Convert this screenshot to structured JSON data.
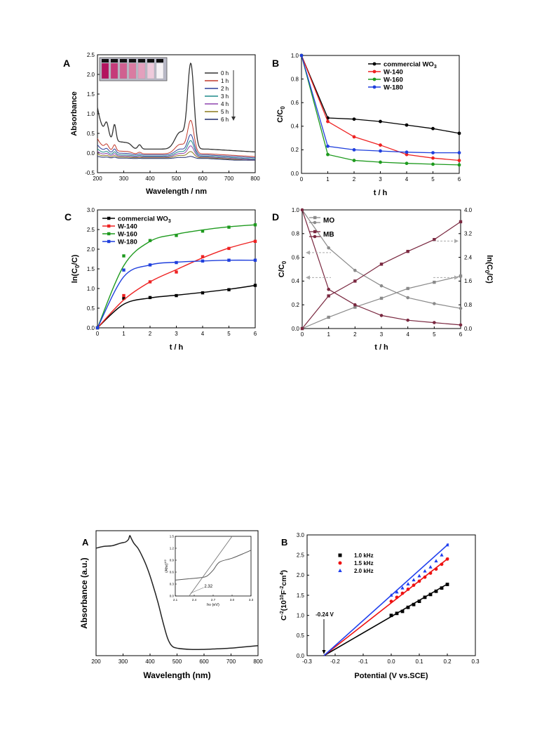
{
  "chart_data": [
    {
      "id": "A1",
      "type": "line",
      "panel_letter": "A",
      "xlabel": "Wavelength / nm",
      "ylabel": "Absorbance",
      "xlim": [
        200,
        800
      ],
      "ylim": [
        -0.5,
        2.5
      ],
      "xticks": [
        "200",
        "300",
        "400",
        "500",
        "600",
        "700",
        "800"
      ],
      "yticks": [
        "-0.5",
        "0.0",
        "0.5",
        "1.0",
        "1.5",
        "2.0",
        "2.5"
      ],
      "legend_position": "top-right",
      "legend_arrow": true,
      "inset_photo": "photo of seven sample vials changing from magenta to colorless",
      "series": [
        {
          "name": "0 h",
          "color": "#333333",
          "peak": 2.13,
          "shoulder": 0.43,
          "uv": 0.9,
          "base": 0.1
        },
        {
          "name": "1 h",
          "color": "#c0392b",
          "peak": 0.82,
          "shoulder": 0.24,
          "uv": 0.33,
          "base": -0.02
        },
        {
          "name": "2 h",
          "color": "#2c3e9a",
          "peak": 0.5,
          "shoulder": 0.15,
          "uv": 0.22,
          "base": -0.05
        },
        {
          "name": "3 h",
          "color": "#1f8a8a",
          "peak": 0.38,
          "shoulder": 0.12,
          "uv": 0.16,
          "base": -0.08
        },
        {
          "name": "4 h",
          "color": "#8e44ad",
          "peak": 0.27,
          "shoulder": 0.09,
          "uv": 0.12,
          "base": -0.1
        },
        {
          "name": "5 h",
          "color": "#8c7a1c",
          "peak": 0.15,
          "shoulder": 0.06,
          "uv": 0.08,
          "base": -0.12
        },
        {
          "name": "6 h",
          "color": "#1f2a6b",
          "peak": 0.05,
          "shoulder": 0.03,
          "uv": 0.05,
          "base": -0.14
        }
      ]
    },
    {
      "id": "B1",
      "type": "line",
      "panel_letter": "B",
      "xlabel": "t / h",
      "ylabel": "C/C",
      "ylabel_sub": "0",
      "xlim": [
        0,
        6
      ],
      "ylim": [
        0,
        1.0
      ],
      "xticks": [
        "0",
        "1",
        "2",
        "3",
        "4",
        "5",
        "6"
      ],
      "yticks": [
        "0.0",
        "0.2",
        "0.4",
        "0.6",
        "0.8",
        "1.0"
      ],
      "legend_position": "top-right",
      "series": [
        {
          "name": "commercial WO",
          "name_sub": "3",
          "color": "#000000",
          "x": [
            0,
            1,
            2,
            3,
            4,
            5,
            6
          ],
          "y": [
            1.0,
            0.47,
            0.46,
            0.44,
            0.41,
            0.38,
            0.34
          ]
        },
        {
          "name": "W-140",
          "color": "#ee2222",
          "x": [
            0,
            1,
            2,
            3,
            4,
            5,
            6
          ],
          "y": [
            1.0,
            0.44,
            0.31,
            0.24,
            0.16,
            0.13,
            0.11
          ]
        },
        {
          "name": "W-160",
          "color": "#1e9a1e",
          "x": [
            0,
            1,
            2,
            3,
            4,
            5,
            6
          ],
          "y": [
            1.0,
            0.16,
            0.11,
            0.095,
            0.085,
            0.078,
            0.072
          ]
        },
        {
          "name": "W-180",
          "color": "#1f3fdd",
          "x": [
            0,
            1,
            2,
            3,
            4,
            5,
            6
          ],
          "y": [
            1.0,
            0.23,
            0.2,
            0.19,
            0.18,
            0.175,
            0.175
          ]
        }
      ]
    },
    {
      "id": "C1",
      "type": "scatter",
      "panel_letter": "C",
      "xlabel": "t / h",
      "ylabel": "ln(C",
      "ylabel_sub": "0",
      "ylabel_tail": "/C)",
      "xlim": [
        0,
        6
      ],
      "ylim": [
        0,
        3.0
      ],
      "xticks": [
        "0",
        "1",
        "2",
        "3",
        "4",
        "5",
        "6"
      ],
      "yticks": [
        "0.0",
        "0.5",
        "1.0",
        "1.5",
        "2.0",
        "2.5",
        "3.0"
      ],
      "legend_position": "top-left",
      "series": [
        {
          "name": "commercial WO",
          "name_sub": "3",
          "color": "#000000",
          "x": [
            0,
            1,
            2,
            3,
            4,
            5,
            6
          ],
          "y": [
            0.0,
            0.75,
            0.77,
            0.82,
            0.89,
            0.97,
            1.08
          ],
          "curve_y": [
            0,
            0.6,
            0.76,
            0.83,
            0.9,
            0.98,
            1.08
          ]
        },
        {
          "name": "W-140",
          "color": "#ee2222",
          "x": [
            0,
            1,
            2,
            3,
            4,
            5,
            6
          ],
          "y": [
            0.0,
            0.82,
            1.17,
            1.42,
            1.81,
            2.02,
            2.2
          ],
          "curve_y": [
            0,
            0.71,
            1.17,
            1.48,
            1.78,
            2.03,
            2.21
          ]
        },
        {
          "name": "W-160",
          "color": "#1e9a1e",
          "x": [
            0,
            1,
            2,
            3,
            4,
            5,
            6
          ],
          "y": [
            0.0,
            1.83,
            2.22,
            2.35,
            2.46,
            2.56,
            2.62
          ],
          "curve_y": [
            0,
            1.58,
            2.2,
            2.38,
            2.49,
            2.57,
            2.62
          ]
        },
        {
          "name": "W-180",
          "color": "#1f3fdd",
          "x": [
            0,
            1,
            2,
            3,
            4,
            5,
            6
          ],
          "y": [
            0.0,
            1.47,
            1.6,
            1.66,
            1.7,
            1.72,
            1.72
          ],
          "curve_y": [
            0,
            1.3,
            1.6,
            1.67,
            1.7,
            1.72,
            1.72
          ]
        }
      ]
    },
    {
      "id": "D1",
      "type": "line",
      "panel_letter": "D",
      "xlabel": "t / h",
      "ylabel": "C/C",
      "ylabel_sub": "0",
      "y2label": "ln(C",
      "y2label_sub": "0",
      "y2label_tail": "/C)",
      "xlim": [
        0,
        6
      ],
      "ylim": [
        0,
        1.0
      ],
      "y2lim": [
        0,
        4.0
      ],
      "xticks": [
        "0",
        "1",
        "2",
        "3",
        "4",
        "5",
        "6"
      ],
      "yticks": [
        "0.0",
        "0.2",
        "0.4",
        "0.6",
        "0.8",
        "1.0"
      ],
      "y2ticks": [
        "0.0",
        "0.8",
        "1.6",
        "2.4",
        "3.2",
        "4.0"
      ],
      "legend_position": "top-left",
      "series": [
        {
          "name": "MO",
          "color": "#8a8a8a",
          "x": [
            0,
            1,
            2,
            3,
            4,
            5,
            6
          ],
          "y": [
            1.0,
            0.68,
            0.49,
            0.36,
            0.26,
            0.21,
            0.17
          ],
          "y2": [
            0,
            0.38,
            0.72,
            1.02,
            1.35,
            1.56,
            1.77
          ]
        },
        {
          "name": "MB",
          "color": "#7a2840",
          "x": [
            0,
            1,
            2,
            3,
            4,
            5,
            6
          ],
          "y": [
            1.0,
            0.33,
            0.2,
            0.11,
            0.07,
            0.05,
            0.03
          ],
          "y2": [
            0,
            1.1,
            1.6,
            2.17,
            2.6,
            3.0,
            3.6
          ]
        }
      ]
    },
    {
      "id": "A2",
      "type": "line",
      "panel_letter": "A",
      "xlabel": "Wavelength (nm)",
      "ylabel": "Absorbance (a.u.)",
      "xlim": [
        200,
        800
      ],
      "xticks": [
        "200",
        "300",
        "400",
        "500",
        "600",
        "700",
        "800"
      ],
      "series": [
        {
          "name": "",
          "color": "#222222",
          "x": [
            200,
            230,
            260,
            290,
            310,
            320,
            325,
            330,
            340,
            355,
            370,
            390,
            410,
            430,
            450,
            465,
            480,
            500,
            550,
            600,
            650,
            700,
            750,
            800
          ],
          "y": [
            0.86,
            0.875,
            0.88,
            0.9,
            0.91,
            0.93,
            0.96,
            0.94,
            0.9,
            0.86,
            0.8,
            0.7,
            0.57,
            0.42,
            0.25,
            0.14,
            0.08,
            0.06,
            0.05,
            0.05,
            0.055,
            0.06,
            0.07,
            0.08
          ]
        }
      ],
      "inset": {
        "xlabel": "hν (eV)",
        "ylabel": "(Ahν)",
        "ylabel_sup": "1/2",
        "xlim": [
          2.1,
          3.3
        ],
        "ylim": [
          0.0,
          1.5
        ],
        "xticks": [
          "2.1",
          "2.4",
          "2.7",
          "3.0",
          "3.3"
        ],
        "yticks": [
          "0.0",
          "0.3",
          "0.6",
          "0.9",
          "1.2",
          "1.5"
        ],
        "annotation": "2.32",
        "band_gap": 2.32,
        "curve": {
          "x": [
            2.1,
            2.3,
            2.5,
            2.6,
            2.7,
            2.8,
            3.0,
            3.2,
            3.3
          ],
          "y": [
            0.4,
            0.43,
            0.46,
            0.5,
            0.65,
            0.85,
            0.95,
            1.08,
            1.15
          ]
        },
        "tangent": {
          "x": [
            2.32,
            3.0
          ],
          "y": [
            0.0,
            1.5
          ]
        }
      }
    },
    {
      "id": "B2",
      "type": "scatter",
      "panel_letter": "B",
      "xlabel": "Potential (V vs.SCE)",
      "ylabel": "C",
      "ylabel_sup": "-2",
      "ylabel_mid": "(10",
      "ylabel_sup2": "10",
      "ylabel_tail": "F",
      "ylabel_sup3": "-2",
      "ylabel_tail2": "cm",
      "ylabel_sup4": "4",
      "ylabel_end": ")",
      "xlim": [
        -0.3,
        0.3
      ],
      "ylim": [
        0.0,
        3.0
      ],
      "xticks": [
        "-0.3",
        "-0.2",
        "-0.1",
        "0.0",
        "0.1",
        "0.2",
        "0.3"
      ],
      "yticks": [
        "0.0",
        "0.5",
        "1.0",
        "1.5",
        "2.0",
        "2.5",
        "3.0"
      ],
      "legend_position": "top-left",
      "annotation": "-0.24 V",
      "flatband": -0.24,
      "series": [
        {
          "name": "1.0 kHz",
          "color": "#000000",
          "marker": "square",
          "x": [
            0.0,
            0.02,
            0.04,
            0.06,
            0.08,
            0.1,
            0.12,
            0.14,
            0.16,
            0.18,
            0.2
          ],
          "y": [
            1.0,
            1.05,
            1.1,
            1.2,
            1.27,
            1.35,
            1.45,
            1.52,
            1.6,
            1.68,
            1.77
          ],
          "fit": {
            "x": [
              -0.24,
              0.205
            ],
            "y": [
              0.0,
              1.8
            ]
          }
        },
        {
          "name": "1.5 kHz",
          "color": "#ee1111",
          "marker": "circle",
          "x": [
            0.0,
            0.02,
            0.04,
            0.06,
            0.08,
            0.1,
            0.12,
            0.14,
            0.16,
            0.18,
            0.2
          ],
          "y": [
            1.35,
            1.45,
            1.55,
            1.65,
            1.75,
            1.85,
            1.95,
            2.05,
            2.15,
            2.27,
            2.4
          ],
          "fit": {
            "x": [
              -0.24,
              0.205
            ],
            "y": [
              0.0,
              2.43
            ]
          }
        },
        {
          "name": "2.0 kHz",
          "color": "#1f3fee",
          "marker": "triangle",
          "x": [
            0.0,
            0.02,
            0.04,
            0.06,
            0.08,
            0.1,
            0.12,
            0.14,
            0.16,
            0.18,
            0.2
          ],
          "y": [
            1.5,
            1.58,
            1.68,
            1.78,
            1.88,
            1.98,
            2.1,
            2.2,
            2.35,
            2.5,
            2.75
          ],
          "fit": {
            "x": [
              -0.24,
              0.205
            ],
            "y": [
              0.0,
              2.78
            ]
          }
        }
      ]
    }
  ]
}
